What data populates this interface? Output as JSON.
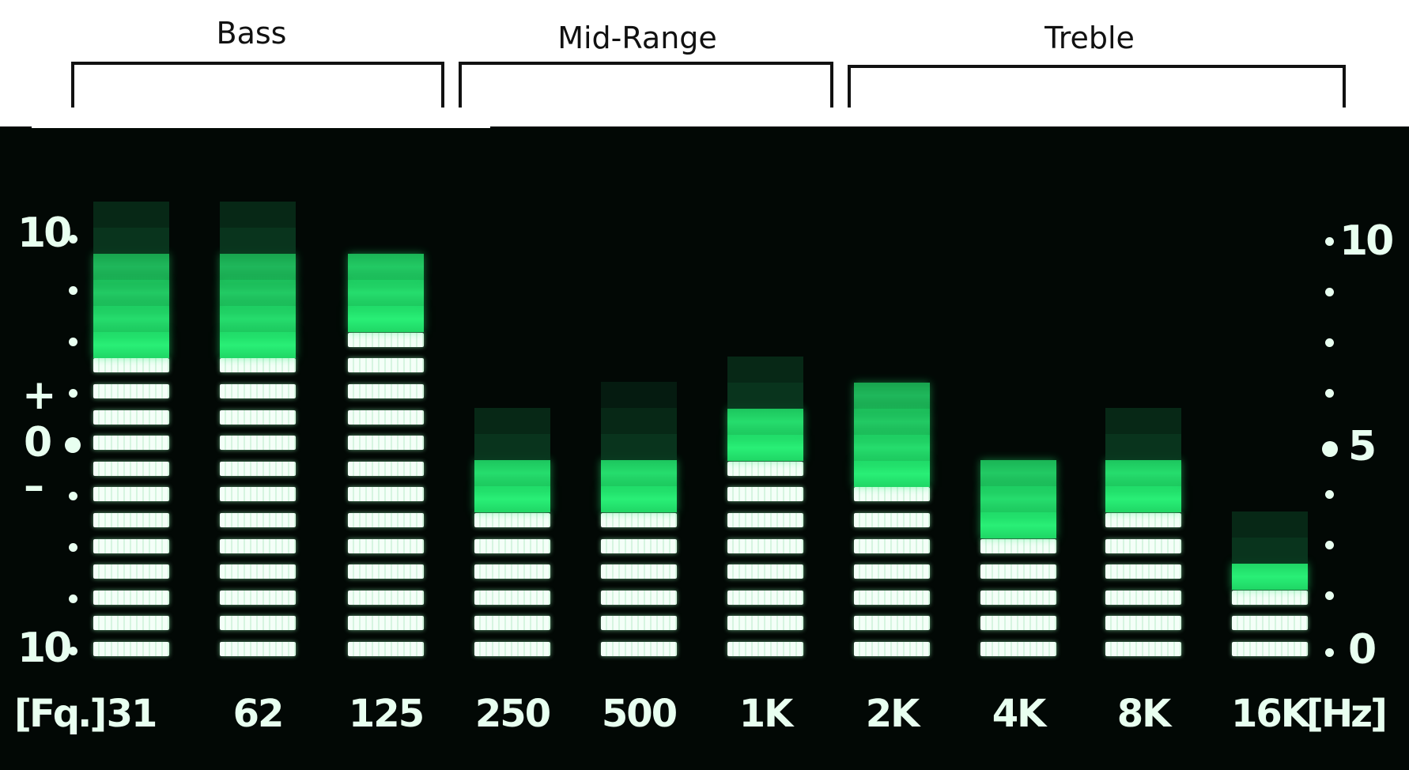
{
  "groups": [
    {
      "label": "Bass"
    },
    {
      "label": "Mid-Range"
    },
    {
      "label": "Treble"
    }
  ],
  "scale_left": {
    "top": "10",
    "plus": "+",
    "zero": "0",
    "minus": "–",
    "bottom": "10"
  },
  "scale_right": {
    "top": "10",
    "mid": "5",
    "bottom": "0"
  },
  "freq_prefix": "[Fq.]",
  "freq_unit": "[Hz]",
  "colors": {
    "background": "#020805",
    "segment_lit": "#f4fff8",
    "segment_glow": "#29ef76",
    "segment_dim": "#0a3a20"
  },
  "bands": [
    {
      "label": "31",
      "lit_segments": 12,
      "glow_segments": 4,
      "dim_segments": 2
    },
    {
      "label": "62",
      "lit_segments": 12,
      "glow_segments": 4,
      "dim_segments": 2
    },
    {
      "label": "125",
      "lit_segments": 13,
      "glow_segments": 3,
      "dim_segments": 0
    },
    {
      "label": "250",
      "lit_segments": 6,
      "glow_segments": 2,
      "dim_segments": 2
    },
    {
      "label": "500",
      "lit_segments": 6,
      "glow_segments": 2,
      "dim_segments": 3
    },
    {
      "label": "1K",
      "lit_segments": 8,
      "glow_segments": 2,
      "dim_segments": 2
    },
    {
      "label": "2K",
      "lit_segments": 7,
      "glow_segments": 4,
      "dim_segments": 0
    },
    {
      "label": "4K",
      "lit_segments": 5,
      "glow_segments": 3,
      "dim_segments": 0
    },
    {
      "label": "8K",
      "lit_segments": 6,
      "glow_segments": 2,
      "dim_segments": 2
    },
    {
      "label": "16K",
      "lit_segments": 3,
      "glow_segments": 1,
      "dim_segments": 2
    }
  ]
}
